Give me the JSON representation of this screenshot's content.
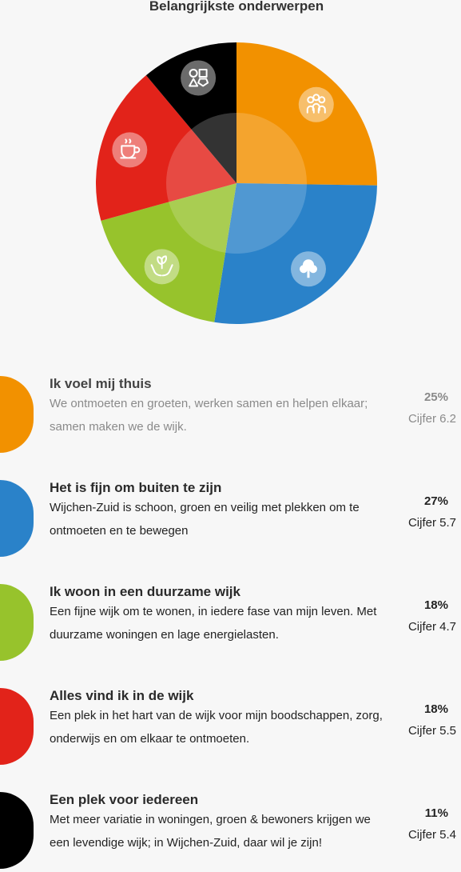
{
  "title": "Belangrijkste onderwerpen",
  "chart_data": {
    "type": "pie",
    "title": "Belangrijkste onderwerpen",
    "slices": [
      {
        "name": "Ik voel mij thuis",
        "value": 25,
        "color": "#f29100",
        "icon": "people-group-icon"
      },
      {
        "name": "Het is fijn om buiten te zijn",
        "value": 27,
        "color": "#2a82c9",
        "icon": "tree-icon"
      },
      {
        "name": "Ik woon in een duurzame wijk",
        "value": 18,
        "color": "#97c32c",
        "icon": "hands-plant-icon"
      },
      {
        "name": "Alles vind ik in de wijk",
        "value": 18,
        "color": "#e2231a",
        "icon": "coffee-cup-icon"
      },
      {
        "name": "Een plek voor iedereen",
        "value": 11,
        "color": "#000000",
        "icon": "shapes-icon"
      }
    ]
  },
  "topics": [
    {
      "name": "Ik voel mij thuis",
      "description": "We ontmoeten en groeten, werken samen en helpen elkaar; samen maken we de wijk.",
      "percent": "25%",
      "score": "Cijfer 6.2",
      "color": "#f29100"
    },
    {
      "name": "Het is fijn om buiten te zijn",
      "description": "Wijchen-Zuid is schoon, groen en veilig met plekken om te ontmoeten en te bewegen",
      "percent": "27%",
      "score": "Cijfer 5.7",
      "color": "#2a82c9"
    },
    {
      "name": "Ik woon in een duurzame wijk",
      "description": "Een fijne wijk om te wonen, in iedere fase van mijn leven. Met duurzame woningen en lage energielasten.",
      "percent": "18%",
      "score": "Cijfer 4.7",
      "color": "#97c32c"
    },
    {
      "name": "Alles vind ik in de wijk",
      "description": "Een plek in het hart van de wijk voor mijn boodschappen, zorg, onderwijs en om elkaar te ontmoeten.",
      "percent": "18%",
      "score": "Cijfer 5.5",
      "color": "#e2231a"
    },
    {
      "name": "Een plek voor iedereen",
      "description": "Met meer variatie in woningen, groen & bewoners krijgen we een levendige wijk; in Wijchen-Zuid, daar wil je zijn!",
      "percent": "11%",
      "score": "Cijfer 5.4",
      "color": "#000000"
    }
  ]
}
